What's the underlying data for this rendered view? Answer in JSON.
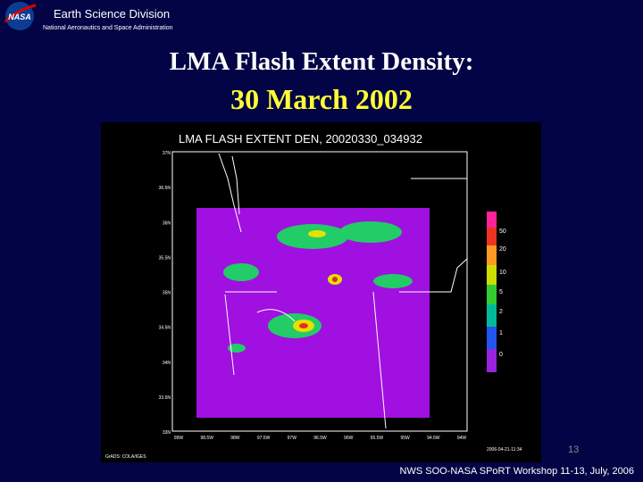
{
  "header": {
    "logo": "NASA",
    "org": "Earth Science Division",
    "suborg": "National Aeronautics and Space Administration"
  },
  "title": {
    "line1": "LMA Flash Extent Density:",
    "line2": "30 March 2002"
  },
  "figure": {
    "title": "LMA FLASH EXTENT DEN, 20020330_034932",
    "lat_labels": [
      "37N",
      "36.5N",
      "36N",
      "35.5N",
      "35N",
      "34.5N",
      "34N",
      "33.5N",
      "33N"
    ],
    "lon_labels": [
      "99W",
      "98.5W",
      "98W",
      "97.5W",
      "97W",
      "96.5W",
      "96W",
      "95.5W",
      "95W",
      "94.5W",
      "94W"
    ],
    "colorbar_labels": [
      50,
      20,
      10,
      5,
      2,
      1,
      0
    ],
    "credit": "GrADS: COLA/IGES",
    "timestamp": "2006-04-21-11:34"
  },
  "footer": {
    "page_number": "13",
    "workshop": "NWS SOO-NASA SPoRT Workshop 11-13, July, 2006"
  }
}
